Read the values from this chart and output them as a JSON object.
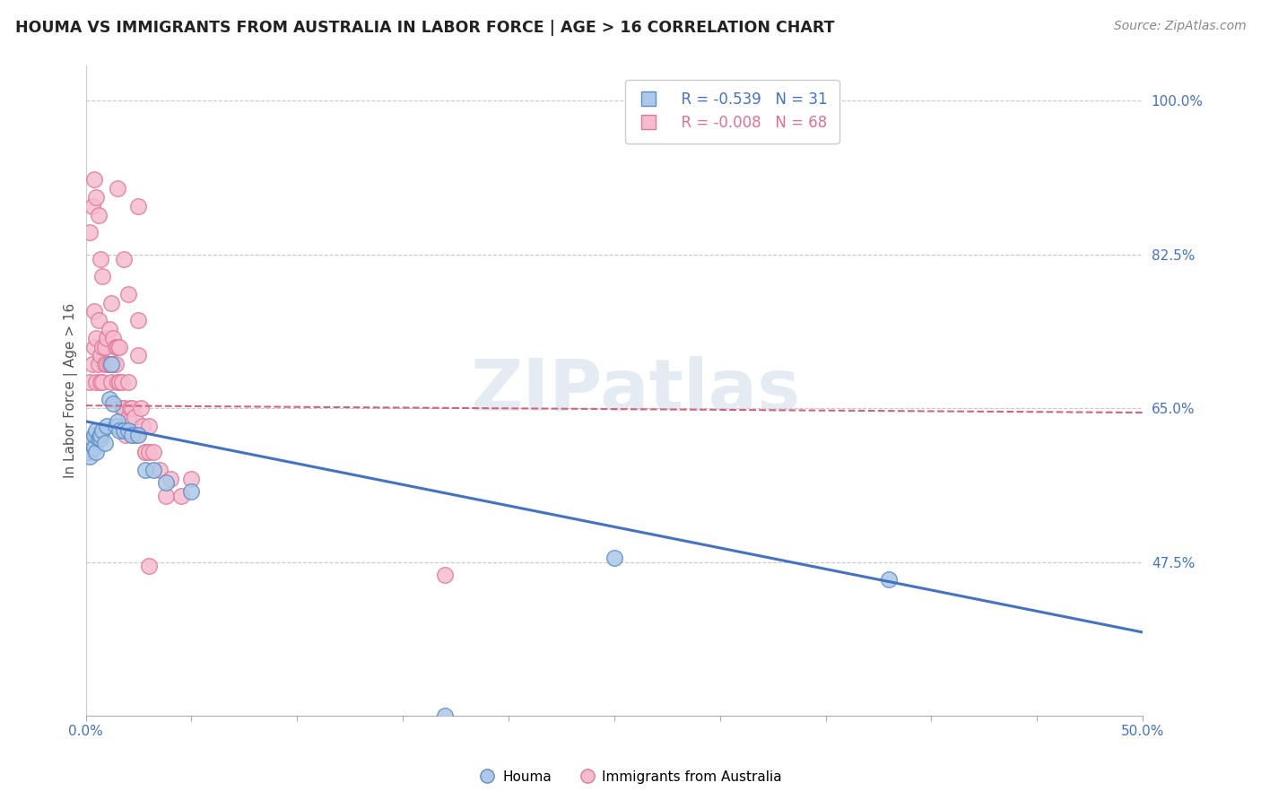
{
  "title": "HOUMA VS IMMIGRANTS FROM AUSTRALIA IN LABOR FORCE | AGE > 16 CORRELATION CHART",
  "source": "Source: ZipAtlas.com",
  "ylabel": "In Labor Force | Age > 16",
  "xlim": [
    0.0,
    0.5
  ],
  "ylim": [
    0.3,
    1.04
  ],
  "xtick_major": [
    0.0,
    0.1,
    0.2,
    0.3,
    0.4,
    0.5
  ],
  "xtick_minor_count": 10,
  "yticks_right": [
    0.475,
    0.65,
    0.825,
    1.0
  ],
  "ytick_labels_right": [
    "47.5%",
    "65.0%",
    "82.5%",
    "100.0%"
  ],
  "xtick_labels": [
    "0.0%",
    "",
    "",
    "",
    "",
    "50.0%"
  ],
  "houma_color": "#adc8e8",
  "houma_edge_color": "#5b8ec4",
  "australia_color": "#f5bcd0",
  "australia_edge_color": "#e0789a",
  "houma_line_color": "#4472c4",
  "australia_line_color": "#d4637a",
  "legend_R_houma": "R = -0.539",
  "legend_N_houma": "N = 31",
  "legend_R_australia": "R = -0.008",
  "legend_N_australia": "N = 68",
  "background_color": "#ffffff",
  "grid_color": "#c8c8c8",
  "watermark": "ZIPatlas",
  "houma_line_x0": 0.0,
  "houma_line_x1": 0.5,
  "houma_line_y0": 0.635,
  "houma_line_y1": 0.395,
  "australia_line_x0": 0.0,
  "australia_line_x1": 0.5,
  "australia_line_y0": 0.653,
  "australia_line_y1": 0.645,
  "houma_x": [
    0.001,
    0.002,
    0.003,
    0.003,
    0.004,
    0.004,
    0.005,
    0.005,
    0.006,
    0.007,
    0.007,
    0.008,
    0.009,
    0.01,
    0.011,
    0.012,
    0.013,
    0.014,
    0.015,
    0.016,
    0.018,
    0.02,
    0.022,
    0.025,
    0.028,
    0.032,
    0.038,
    0.05,
    0.25,
    0.38,
    0.17
  ],
  "houma_y": [
    0.6,
    0.595,
    0.61,
    0.615,
    0.605,
    0.62,
    0.6,
    0.625,
    0.615,
    0.615,
    0.62,
    0.625,
    0.61,
    0.63,
    0.66,
    0.7,
    0.655,
    0.63,
    0.635,
    0.625,
    0.625,
    0.625,
    0.62,
    0.62,
    0.58,
    0.58,
    0.565,
    0.555,
    0.48,
    0.455,
    0.3
  ],
  "australia_x": [
    0.002,
    0.003,
    0.004,
    0.004,
    0.005,
    0.005,
    0.006,
    0.006,
    0.007,
    0.007,
    0.008,
    0.008,
    0.009,
    0.009,
    0.01,
    0.01,
    0.011,
    0.011,
    0.012,
    0.012,
    0.013,
    0.013,
    0.014,
    0.014,
    0.015,
    0.015,
    0.016,
    0.016,
    0.017,
    0.017,
    0.018,
    0.018,
    0.019,
    0.02,
    0.02,
    0.021,
    0.022,
    0.022,
    0.023,
    0.024,
    0.025,
    0.025,
    0.026,
    0.027,
    0.028,
    0.028,
    0.03,
    0.03,
    0.032,
    0.035,
    0.038,
    0.04,
    0.045,
    0.05,
    0.002,
    0.003,
    0.004,
    0.005,
    0.006,
    0.007,
    0.008,
    0.012,
    0.015,
    0.018,
    0.02,
    0.025,
    0.17,
    0.03
  ],
  "australia_y": [
    0.68,
    0.7,
    0.72,
    0.76,
    0.68,
    0.73,
    0.7,
    0.75,
    0.71,
    0.68,
    0.72,
    0.68,
    0.72,
    0.7,
    0.7,
    0.73,
    0.7,
    0.74,
    0.7,
    0.68,
    0.7,
    0.73,
    0.7,
    0.72,
    0.72,
    0.68,
    0.72,
    0.68,
    0.68,
    0.65,
    0.63,
    0.65,
    0.62,
    0.64,
    0.68,
    0.65,
    0.62,
    0.65,
    0.64,
    0.62,
    0.75,
    0.71,
    0.65,
    0.63,
    0.6,
    0.6,
    0.63,
    0.6,
    0.6,
    0.58,
    0.55,
    0.57,
    0.55,
    0.57,
    0.85,
    0.88,
    0.91,
    0.89,
    0.87,
    0.82,
    0.8,
    0.77,
    0.9,
    0.82,
    0.78,
    0.88,
    0.46,
    0.47
  ]
}
